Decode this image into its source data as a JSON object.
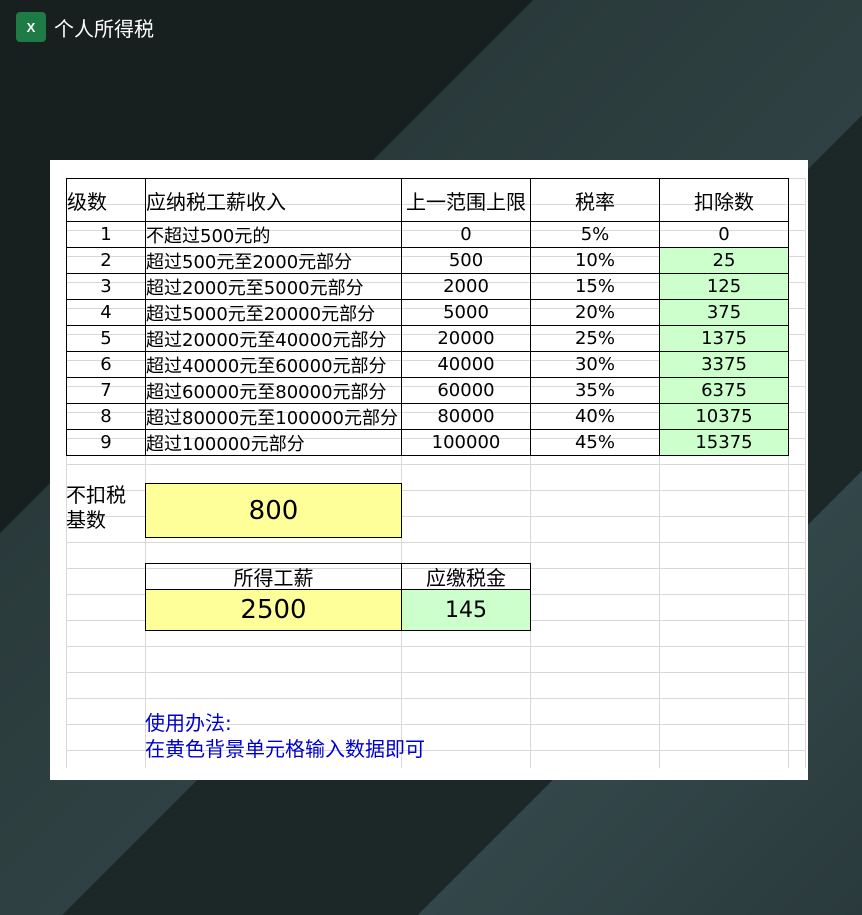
{
  "window": {
    "title": "个人所得税",
    "icon": "excel-icon"
  },
  "table": {
    "headers": [
      "级数",
      "应纳税工薪收入",
      "上一范围上限",
      "税率",
      "扣除数"
    ],
    "rows": [
      [
        "1",
        "不超过500元的",
        "0",
        "5%",
        "0"
      ],
      [
        "2",
        "超过500元至2000元部分",
        "500",
        "10%",
        "25"
      ],
      [
        "3",
        "超过2000元至5000元部分",
        "2000",
        "15%",
        "125"
      ],
      [
        "4",
        "超过5000元至20000元部分",
        "5000",
        "20%",
        "375"
      ],
      [
        "5",
        "超过20000元至40000元部分",
        "20000",
        "25%",
        "1375"
      ],
      [
        "6",
        "超过40000元至60000元部分",
        "40000",
        "30%",
        "3375"
      ],
      [
        "7",
        "超过60000元至80000元部分",
        "60000",
        "35%",
        "6375"
      ],
      [
        "8",
        "超过80000元至100000元部分",
        "80000",
        "40%",
        "10375"
      ],
      [
        "9",
        "超过100000元部分",
        "100000",
        "45%",
        "15375"
      ]
    ]
  },
  "base": {
    "label_line1": "不扣税",
    "label_line2": "基数",
    "value": "800"
  },
  "calc": {
    "income_label": "所得工薪",
    "tax_label": "应缴税金",
    "income_value": "2500",
    "tax_value": "145"
  },
  "usage": {
    "title": "使用办法:",
    "text": "在黄色背景单元格输入数据即可"
  },
  "colors": {
    "green_cell": "#ccffcc",
    "yellow_cell": "#ffff99",
    "note_text": "#0000cc"
  }
}
